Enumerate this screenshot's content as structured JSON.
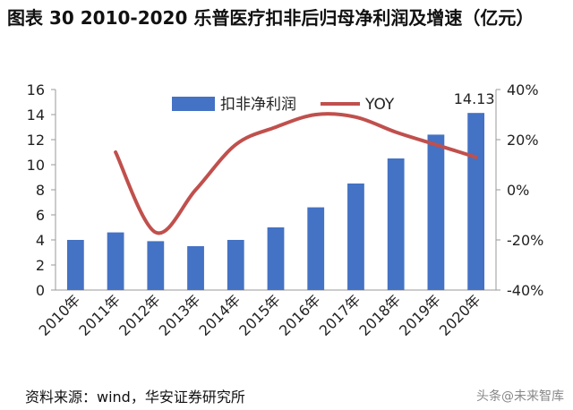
{
  "title": "图表 30 2010-2020 乐普医疗扣非后归母净利润及增速（亿元）",
  "source": "资料来源：wind，华安证券研究所",
  "watermark": "头条@未来智库",
  "chart_data": {
    "type": "bar",
    "categories": [
      "2010年",
      "2011年",
      "2012年",
      "2013年",
      "2014年",
      "2015年",
      "2016年",
      "2017年",
      "2018年",
      "2019年",
      "2020年"
    ],
    "series": [
      {
        "name": "扣非净利润",
        "type": "bar",
        "axis": "left",
        "color": "#4472C4",
        "values": [
          4.0,
          4.6,
          3.9,
          3.5,
          4.0,
          5.0,
          6.6,
          8.5,
          10.5,
          12.4,
          14.13
        ]
      },
      {
        "name": "YOY",
        "type": "line",
        "axis": "right",
        "color": "#C0504D",
        "values": [
          null,
          15,
          -17,
          0,
          18,
          25,
          30,
          29,
          23,
          18,
          13
        ]
      }
    ],
    "left_axis": {
      "min": 0,
      "max": 16,
      "ticks": [
        "0",
        "2",
        "4",
        "6",
        "8",
        "10",
        "12",
        "14",
        "16"
      ]
    },
    "right_axis": {
      "min": -40,
      "max": 40,
      "ticks": [
        "-40%",
        "-20%",
        "0%",
        "20%",
        "40%"
      ]
    },
    "data_labels": [
      {
        "category": "2020年",
        "text": "14.13"
      }
    ],
    "legend": {
      "placement": "top-center",
      "items": [
        "扣非净利润",
        "YOY"
      ]
    },
    "grid": false
  }
}
